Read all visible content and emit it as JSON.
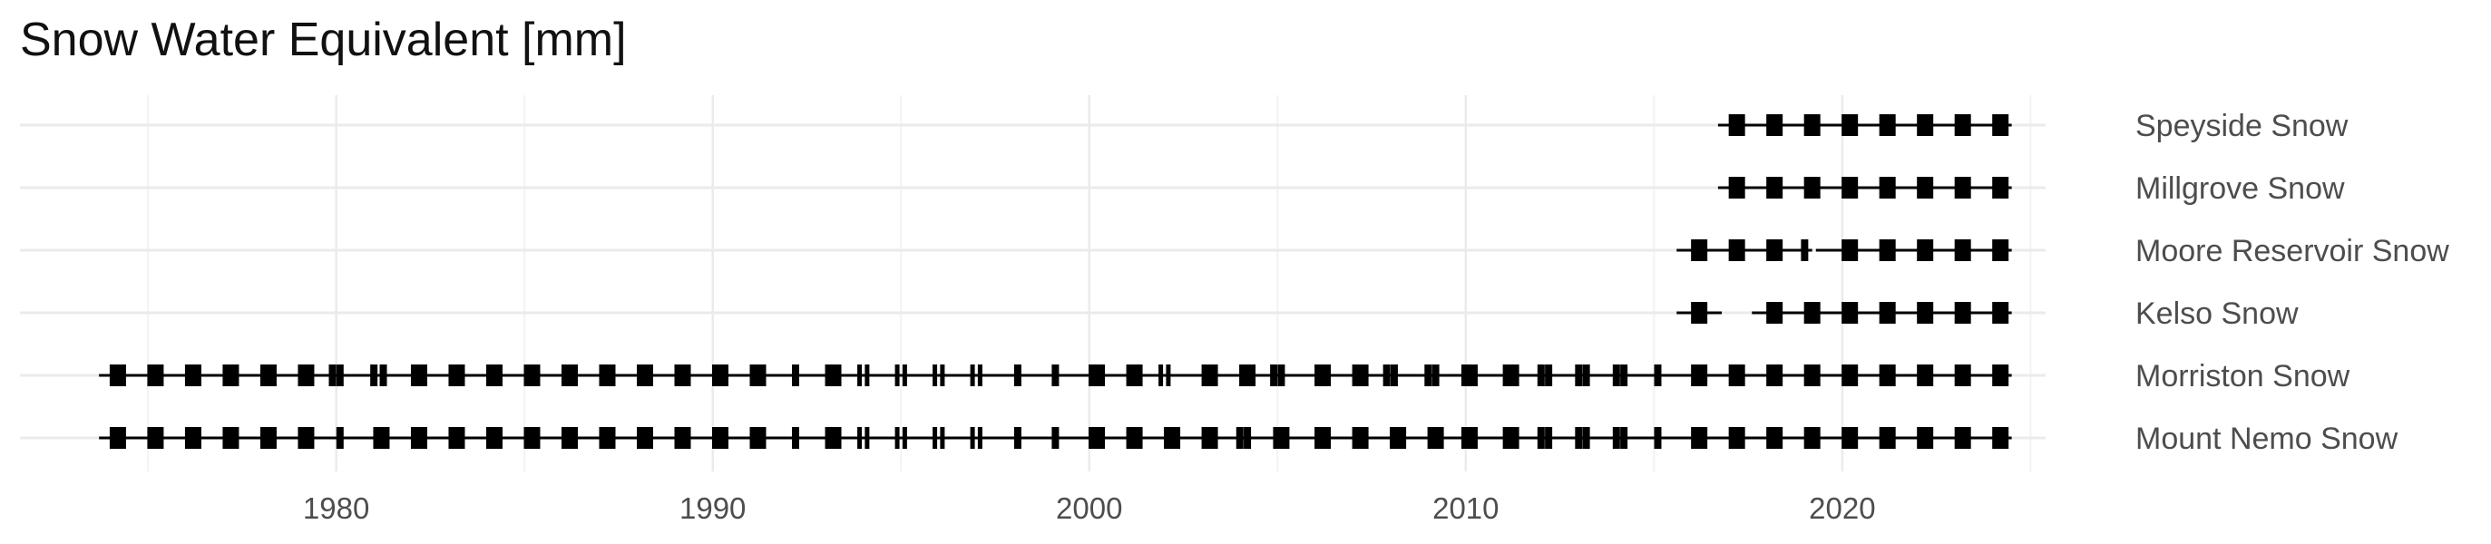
{
  "chart_data": {
    "type": "scatter",
    "title": "Snow Water Equivalent [mm]",
    "xlabel": "",
    "ylabel": "",
    "xlim": [
      1971.6,
      2025.4
    ],
    "x_ticks": [
      1980,
      1990,
      2000,
      2010,
      2020
    ],
    "grid": true,
    "colors": {
      "mark": "#000000",
      "grid_major": "#ebebeb",
      "grid_minor": "#f3f3f3"
    },
    "categories": [
      "Speyside Snow",
      "Millgrove Snow",
      "Moore Reservoir Snow",
      "Kelso Snow",
      "Morriston Snow",
      "Mount Nemo Snow"
    ],
    "series": [
      {
        "name": "Speyside Snow",
        "range": [
          2016.7,
          2024.5
        ],
        "segments": [
          [
            2016.7,
            2024.5
          ]
        ],
        "points": [
          [
            2017.2,
            0.22
          ],
          [
            2018.2,
            0.22
          ],
          [
            2019.2,
            0.22
          ],
          [
            2020.2,
            0.22
          ],
          [
            2021.2,
            0.22
          ],
          [
            2022.2,
            0.22
          ],
          [
            2023.2,
            0.22
          ],
          [
            2024.2,
            0.22
          ]
        ]
      },
      {
        "name": "Millgrove Snow",
        "range": [
          2016.7,
          2024.5
        ],
        "segments": [
          [
            2016.7,
            2024.5
          ]
        ],
        "points": [
          [
            2017.2,
            0.22
          ],
          [
            2018.2,
            0.22
          ],
          [
            2019.2,
            0.22
          ],
          [
            2020.2,
            0.22
          ],
          [
            2021.2,
            0.22
          ],
          [
            2022.2,
            0.22
          ],
          [
            2023.2,
            0.22
          ],
          [
            2024.2,
            0.22
          ]
        ]
      },
      {
        "name": "Moore Reservoir Snow",
        "range": [
          2015.6,
          2024.5
        ],
        "segments": [
          [
            2015.6,
            2019.2
          ],
          [
            2019.3,
            2024.5
          ]
        ],
        "points": [
          [
            2016.2,
            0.22
          ],
          [
            2017.2,
            0.22
          ],
          [
            2018.2,
            0.22
          ],
          [
            2019.0,
            0.08
          ],
          [
            2020.2,
            0.22
          ],
          [
            2021.2,
            0.22
          ],
          [
            2022.2,
            0.22
          ],
          [
            2023.2,
            0.22
          ],
          [
            2024.2,
            0.22
          ]
        ]
      },
      {
        "name": "Kelso Snow",
        "range": [
          2015.6,
          2024.5
        ],
        "segments": [
          [
            2015.6,
            2016.8
          ],
          [
            2017.6,
            2024.5
          ]
        ],
        "points": [
          [
            2016.2,
            0.22
          ],
          [
            2018.2,
            0.22
          ],
          [
            2019.2,
            0.22
          ],
          [
            2020.2,
            0.22
          ],
          [
            2021.2,
            0.22
          ],
          [
            2022.2,
            0.22
          ],
          [
            2023.2,
            0.22
          ],
          [
            2024.2,
            0.22
          ]
        ]
      },
      {
        "name": "Morriston Snow",
        "range": [
          1973.7,
          2024.5
        ],
        "segments": [
          [
            1973.7,
            2024.5
          ]
        ],
        "points": [
          [
            1974.2,
            0.12
          ],
          [
            1975.2,
            0.12
          ],
          [
            1976.2,
            0.12
          ],
          [
            1977.2,
            0.12
          ],
          [
            1978.2,
            0.12
          ],
          [
            1979.2,
            0.12
          ],
          [
            1979.9,
            0.05
          ],
          [
            1980.1,
            0.05
          ],
          [
            1981.0,
            0.05
          ],
          [
            1981.25,
            0.05
          ],
          [
            1982.2,
            0.12
          ],
          [
            1983.2,
            0.12
          ],
          [
            1984.2,
            0.12
          ],
          [
            1985.2,
            0.12
          ],
          [
            1986.2,
            0.12
          ],
          [
            1987.2,
            0.12
          ],
          [
            1988.2,
            0.12
          ],
          [
            1989.2,
            0.12
          ],
          [
            1990.2,
            0.12
          ],
          [
            1991.2,
            0.12
          ],
          [
            1992.2,
            0.05
          ],
          [
            1993.2,
            0.12
          ],
          [
            1993.9,
            0.03
          ],
          [
            1994.1,
            0.03
          ],
          [
            1994.9,
            0.03
          ],
          [
            1995.1,
            0.03
          ],
          [
            1995.9,
            0.03
          ],
          [
            1996.1,
            0.03
          ],
          [
            1996.9,
            0.03
          ],
          [
            1997.1,
            0.03
          ],
          [
            1998.1,
            0.05
          ],
          [
            1999.1,
            0.05
          ],
          [
            2000.2,
            0.12
          ],
          [
            2001.2,
            0.12
          ],
          [
            2001.9,
            0.03
          ],
          [
            2002.1,
            0.03
          ],
          [
            2003.2,
            0.12
          ],
          [
            2004.2,
            0.12
          ],
          [
            2004.9,
            0.05
          ],
          [
            2005.1,
            0.05
          ],
          [
            2006.2,
            0.12
          ],
          [
            2007.2,
            0.12
          ],
          [
            2007.9,
            0.05
          ],
          [
            2008.1,
            0.05
          ],
          [
            2009.0,
            0.05
          ],
          [
            2009.2,
            0.05
          ],
          [
            2010.1,
            0.12
          ],
          [
            2011.2,
            0.12
          ],
          [
            2012.0,
            0.05
          ],
          [
            2012.2,
            0.05
          ],
          [
            2013.0,
            0.05
          ],
          [
            2013.2,
            0.05
          ],
          [
            2014.0,
            0.05
          ],
          [
            2014.2,
            0.05
          ],
          [
            2015.1,
            0.05
          ],
          [
            2016.2,
            0.12
          ],
          [
            2017.2,
            0.12
          ],
          [
            2018.2,
            0.12
          ],
          [
            2019.2,
            0.12
          ],
          [
            2020.2,
            0.12
          ],
          [
            2021.2,
            0.12
          ],
          [
            2022.2,
            0.12
          ],
          [
            2023.2,
            0.12
          ],
          [
            2024.2,
            0.12
          ]
        ]
      },
      {
        "name": "Mount Nemo Snow",
        "range": [
          1973.7,
          2024.5
        ],
        "segments": [
          [
            1973.7,
            2024.5
          ]
        ],
        "points": [
          [
            1974.2,
            0.12
          ],
          [
            1975.2,
            0.12
          ],
          [
            1976.2,
            0.12
          ],
          [
            1977.2,
            0.12
          ],
          [
            1978.2,
            0.12
          ],
          [
            1979.2,
            0.12
          ],
          [
            1980.1,
            0.05
          ],
          [
            1981.2,
            0.12
          ],
          [
            1982.2,
            0.12
          ],
          [
            1983.2,
            0.12
          ],
          [
            1984.2,
            0.12
          ],
          [
            1985.2,
            0.12
          ],
          [
            1986.2,
            0.12
          ],
          [
            1987.2,
            0.12
          ],
          [
            1988.2,
            0.12
          ],
          [
            1989.2,
            0.12
          ],
          [
            1990.2,
            0.12
          ],
          [
            1991.2,
            0.12
          ],
          [
            1992.2,
            0.05
          ],
          [
            1993.2,
            0.12
          ],
          [
            1993.9,
            0.03
          ],
          [
            1994.1,
            0.03
          ],
          [
            1994.9,
            0.03
          ],
          [
            1995.1,
            0.03
          ],
          [
            1995.9,
            0.03
          ],
          [
            1996.1,
            0.03
          ],
          [
            1996.9,
            0.03
          ],
          [
            1997.1,
            0.03
          ],
          [
            1998.1,
            0.05
          ],
          [
            1999.1,
            0.05
          ],
          [
            2000.2,
            0.12
          ],
          [
            2001.2,
            0.12
          ],
          [
            2002.2,
            0.12
          ],
          [
            2003.2,
            0.12
          ],
          [
            2004.0,
            0.05
          ],
          [
            2004.2,
            0.05
          ],
          [
            2005.1,
            0.12
          ],
          [
            2006.2,
            0.12
          ],
          [
            2007.2,
            0.12
          ],
          [
            2008.2,
            0.12
          ],
          [
            2009.2,
            0.12
          ],
          [
            2010.1,
            0.12
          ],
          [
            2011.2,
            0.12
          ],
          [
            2012.0,
            0.05
          ],
          [
            2012.2,
            0.05
          ],
          [
            2013.0,
            0.05
          ],
          [
            2013.2,
            0.05
          ],
          [
            2014.0,
            0.05
          ],
          [
            2014.2,
            0.05
          ],
          [
            2015.1,
            0.05
          ],
          [
            2016.2,
            0.12
          ],
          [
            2017.2,
            0.12
          ],
          [
            2018.2,
            0.12
          ],
          [
            2019.2,
            0.12
          ],
          [
            2020.2,
            0.12
          ],
          [
            2021.2,
            0.12
          ],
          [
            2022.2,
            0.12
          ],
          [
            2023.2,
            0.12
          ],
          [
            2024.2,
            0.12
          ]
        ]
      }
    ]
  }
}
